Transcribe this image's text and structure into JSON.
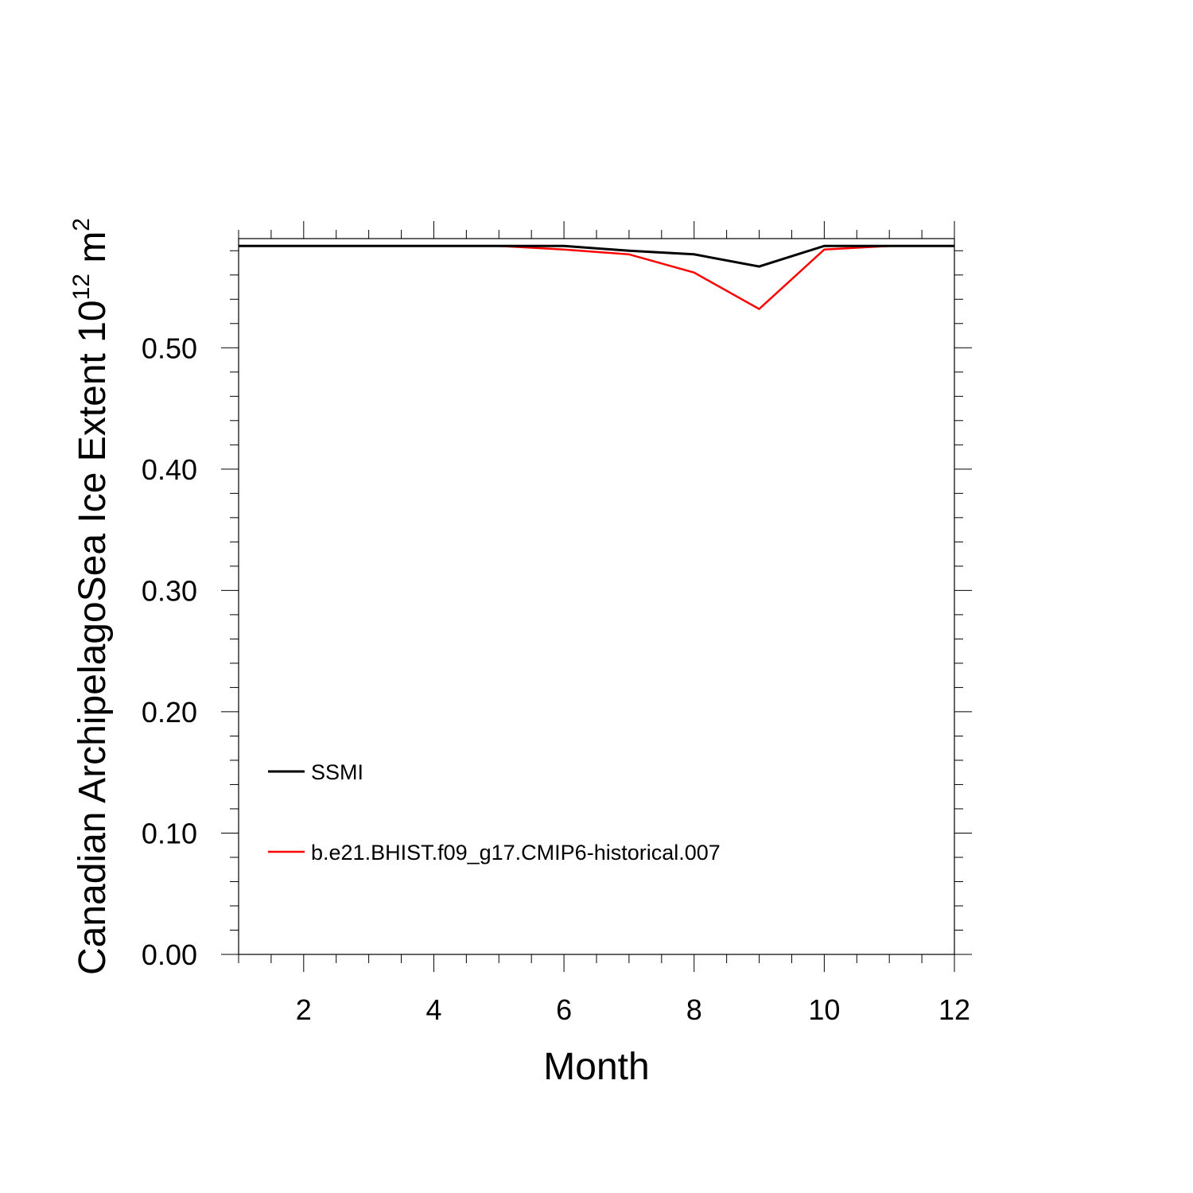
{
  "chart_data": {
    "type": "line",
    "xlabel": "Month",
    "ylabel": "Canadian ArchipelagoSea Ice Extent 10",
    "ylabel_exp1": "12",
    "ylabel_unit": " m",
    "ylabel_exp2": "2",
    "xlim": [
      1,
      12
    ],
    "ylim": [
      0,
      0.59
    ],
    "xticks": [
      2,
      4,
      6,
      8,
      10,
      12
    ],
    "yticks": [
      0.0,
      0.1,
      0.2,
      0.3,
      0.4,
      0.5
    ],
    "ytick_labels": [
      "0.00",
      "0.10",
      "0.20",
      "0.30",
      "0.40",
      "0.50"
    ],
    "grid": false,
    "legend_position": "lower-left",
    "x": [
      1,
      2,
      3,
      4,
      5,
      6,
      7,
      8,
      9,
      10,
      11,
      12
    ],
    "series": [
      {
        "name": "SSMI",
        "color": "#000000",
        "values": [
          0.584,
          0.584,
          0.584,
          0.584,
          0.584,
          0.584,
          0.58,
          0.577,
          0.567,
          0.584,
          0.584,
          0.584
        ]
      },
      {
        "name": "b.e21.BHIST.f09_g17.CMIP6-historical.007",
        "color": "#ff0000",
        "values": [
          0.584,
          0.584,
          0.584,
          0.584,
          0.584,
          0.581,
          0.577,
          0.562,
          0.532,
          0.581,
          0.584,
          0.584
        ]
      }
    ]
  }
}
